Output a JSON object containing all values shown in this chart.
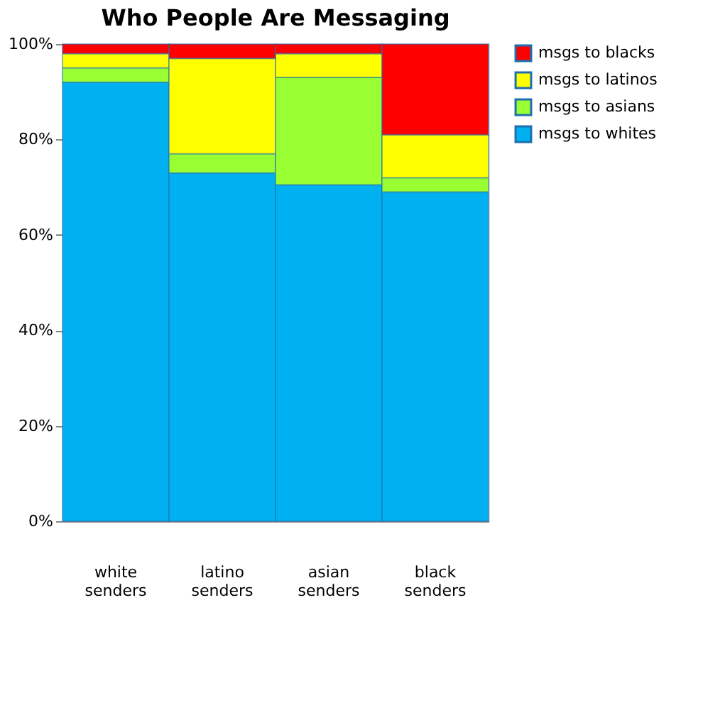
{
  "chart_data": {
    "type": "bar",
    "title": "Who People Are Messaging",
    "stacked": true,
    "legend": "right",
    "categories": [
      "white senders",
      "latino senders",
      "asian senders",
      "black senders"
    ],
    "series": [
      {
        "name": "msgs to whites",
        "color": "#00b0f0",
        "values": [
          92,
          73,
          70.5,
          69
        ]
      },
      {
        "name": "msgs to asians",
        "color": "#99ff33",
        "values": [
          3,
          4,
          22.5,
          3
        ]
      },
      {
        "name": "msgs to latinos",
        "color": "#ffff00",
        "values": [
          3,
          20,
          5,
          9
        ]
      },
      {
        "name": "msgs to blacks",
        "color": "#ff0000",
        "values": [
          2,
          3,
          2,
          19
        ]
      }
    ],
    "ylim": [
      0,
      100
    ],
    "yticks": [
      {
        "value": 0,
        "label": "0%"
      },
      {
        "value": 20,
        "label": "20%"
      },
      {
        "value": 40,
        "label": "40%"
      },
      {
        "value": 60,
        "label": "60%"
      },
      {
        "value": 80,
        "label": "80%"
      },
      {
        "value": 100,
        "label": "100%"
      }
    ]
  }
}
